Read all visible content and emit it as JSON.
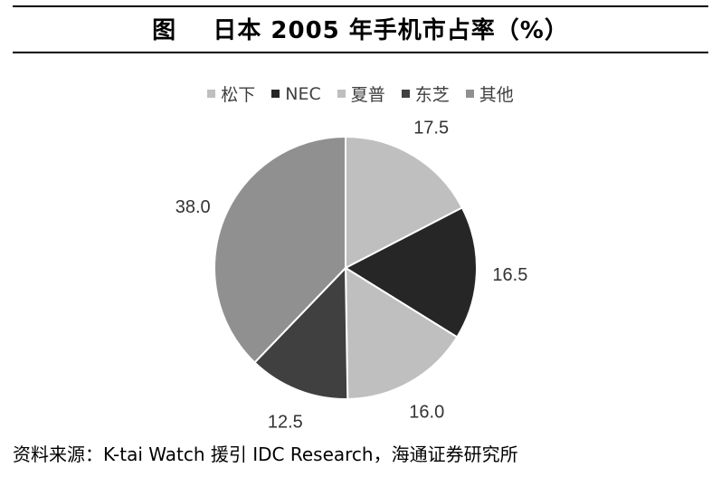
{
  "title": "图    日本 2005 年手机市占率（%）",
  "source": "资料来源：K-tai Watch 援引 IDC Research，海通证券研究所",
  "chart_data": {
    "type": "pie",
    "categories": [
      "松下",
      "NEC",
      "夏普",
      "东芝",
      "其他"
    ],
    "values": [
      17.5,
      16.5,
      16.0,
      12.5,
      38.0
    ],
    "value_labels": [
      "17.5",
      "16.5",
      "16.0",
      "12.5",
      "38.0"
    ],
    "colors": [
      "#bfbfbf",
      "#262626",
      "#bfbfbf",
      "#404040",
      "#909090"
    ],
    "legend_position": "top",
    "start_angle": "12 o'clock, clockwise"
  }
}
